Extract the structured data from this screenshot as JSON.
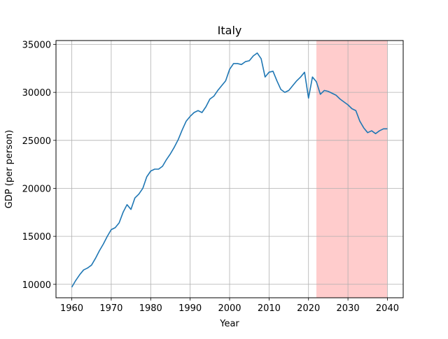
{
  "chart_data": {
    "type": "line",
    "title": "Italy",
    "xlabel": "Year",
    "ylabel": "GDP (per person)",
    "xlim": [
      1956.0,
      2044.0
    ],
    "ylim": [
      8600,
      35400
    ],
    "xticks": [
      1960,
      1970,
      1980,
      1990,
      2000,
      2010,
      2020,
      2030,
      2040
    ],
    "yticks": [
      10000,
      15000,
      20000,
      25000,
      30000,
      35000
    ],
    "grid": true,
    "highlight": {
      "x_start": 2022,
      "x_end": 2040,
      "color": "#ffcccc"
    },
    "series": [
      {
        "color": "#1f77b4",
        "x": [
          1960,
          1961,
          1962,
          1963,
          1964,
          1965,
          1966,
          1967,
          1968,
          1969,
          1970,
          1971,
          1972,
          1973,
          1974,
          1975,
          1976,
          1977,
          1978,
          1979,
          1980,
          1981,
          1982,
          1983,
          1984,
          1985,
          1986,
          1987,
          1988,
          1989,
          1990,
          1991,
          1992,
          1993,
          1994,
          1995,
          1996,
          1997,
          1998,
          1999,
          2000,
          2001,
          2002,
          2003,
          2004,
          2005,
          2006,
          2007,
          2008,
          2009,
          2010,
          2011,
          2012,
          2013,
          2014,
          2015,
          2016,
          2017,
          2018,
          2019,
          2020,
          2021,
          2022,
          2023,
          2024,
          2025,
          2026,
          2027,
          2028,
          2029,
          2030,
          2031,
          2032,
          2033,
          2034,
          2035,
          2036,
          2037,
          2038,
          2039,
          2040
        ],
        "values": [
          9700,
          10400,
          11000,
          11500,
          11700,
          12000,
          12700,
          13500,
          14200,
          15000,
          15700,
          15900,
          16400,
          17500,
          18300,
          17800,
          19000,
          19400,
          20000,
          21200,
          21800,
          22000,
          22000,
          22300,
          23000,
          23600,
          24300,
          25100,
          26100,
          27000,
          27500,
          27900,
          28100,
          27900,
          28500,
          29300,
          29600,
          30200,
          30700,
          31200,
          32400,
          33000,
          33000,
          32900,
          33200,
          33300,
          33800,
          34100,
          33500,
          31600,
          32100,
          32200,
          31200,
          30300,
          30000,
          30200,
          30700,
          31200,
          31600,
          32100,
          29400,
          31600,
          31100,
          29800,
          30200,
          30100,
          29900,
          29700,
          29300,
          29000,
          28700,
          28300,
          28100,
          27000,
          26300,
          25800,
          26000,
          25700,
          26000,
          26200,
          26200
        ]
      }
    ]
  }
}
